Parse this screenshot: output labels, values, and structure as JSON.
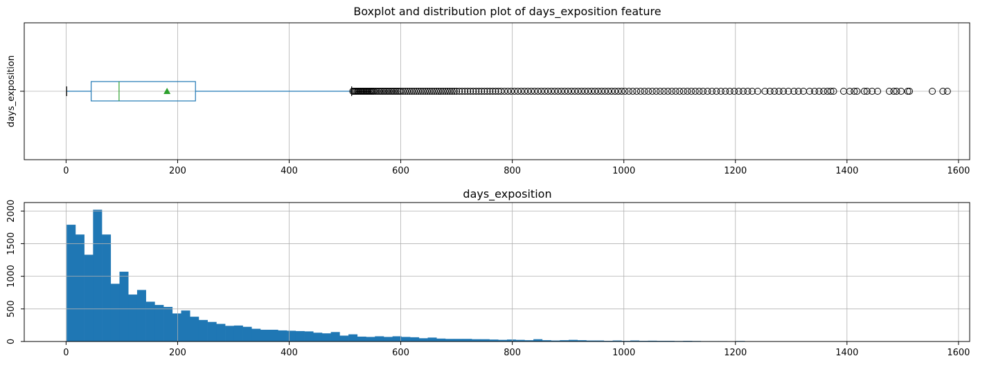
{
  "chart_data": [
    {
      "type": "box",
      "title": "Boxplot and distribution plot of days_exposition feature",
      "xlabel": "",
      "ylabel": "days_exposition",
      "category_label": "days_exposition",
      "xlim": [
        -75,
        1620
      ],
      "xticks": [
        0,
        200,
        400,
        600,
        800,
        1000,
        1200,
        1400,
        1600
      ],
      "grid": true,
      "orientation": "horizontal",
      "box": {
        "whisker_low": 1,
        "q1": 45,
        "median": 95,
        "mean": 181,
        "q3": 232,
        "whisker_high": 512
      },
      "outliers": [
        514,
        516,
        518,
        520,
        522,
        524,
        526,
        528,
        530,
        532,
        534,
        536,
        538,
        540,
        542,
        544,
        546,
        548,
        550,
        552,
        555,
        558,
        561,
        564,
        567,
        570,
        573,
        576,
        579,
        582,
        585,
        588,
        591,
        594,
        597,
        600,
        604,
        608,
        612,
        616,
        620,
        624,
        628,
        632,
        636,
        640,
        644,
        648,
        652,
        656,
        660,
        664,
        668,
        672,
        676,
        680,
        684,
        688,
        692,
        696,
        700,
        705,
        710,
        715,
        720,
        725,
        730,
        735,
        740,
        745,
        750,
        755,
        760,
        765,
        770,
        775,
        780,
        786,
        792,
        798,
        804,
        810,
        816,
        822,
        828,
        834,
        840,
        846,
        852,
        858,
        864,
        870,
        876,
        882,
        888,
        894,
        900,
        906,
        912,
        918,
        924,
        930,
        936,
        942,
        948,
        954,
        960,
        966,
        972,
        978,
        984,
        990,
        996,
        1002,
        1009,
        1016,
        1023,
        1030,
        1037,
        1044,
        1051,
        1058,
        1065,
        1072,
        1079,
        1086,
        1093,
        1100,
        1107,
        1114,
        1121,
        1128,
        1135,
        1142,
        1150,
        1158,
        1166,
        1174,
        1182,
        1190,
        1198,
        1206,
        1214,
        1222,
        1230,
        1240,
        1253,
        1262,
        1270,
        1278,
        1286,
        1295,
        1305,
        1313,
        1322,
        1333,
        1342,
        1350,
        1358,
        1365,
        1371,
        1376,
        1394,
        1405,
        1413,
        1418,
        1431,
        1436,
        1445,
        1455,
        1476,
        1484,
        1489,
        1497,
        1509,
        1512,
        1553,
        1572,
        1580
      ]
    },
    {
      "type": "histogram",
      "title": "days_exposition",
      "xlabel": "",
      "ylabel": "",
      "xlim": [
        -75,
        1620
      ],
      "ylim": [
        0,
        2130
      ],
      "xticks": [
        0,
        200,
        400,
        600,
        800,
        1000,
        1200,
        1400,
        1600
      ],
      "yticks": [
        0,
        500,
        1000,
        1500,
        2000
      ],
      "grid": true,
      "bins": 100,
      "bin_start": 1,
      "bin_width": 15.79,
      "color": "#1f77b4",
      "counts": [
        1790,
        1640,
        1330,
        2020,
        1640,
        885,
        1070,
        720,
        790,
        610,
        560,
        530,
        430,
        475,
        380,
        330,
        300,
        270,
        240,
        245,
        225,
        195,
        180,
        180,
        170,
        165,
        160,
        155,
        135,
        125,
        145,
        90,
        110,
        75,
        70,
        80,
        70,
        80,
        70,
        65,
        50,
        60,
        45,
        40,
        40,
        40,
        35,
        35,
        30,
        25,
        30,
        25,
        20,
        35,
        20,
        15,
        20,
        25,
        20,
        15,
        15,
        10,
        15,
        10,
        15,
        10,
        12,
        10,
        10,
        8,
        10,
        8,
        6,
        6,
        6,
        5,
        8,
        5,
        5,
        4,
        5,
        3,
        5,
        4,
        3,
        3,
        2,
        3,
        3,
        2,
        2,
        2,
        2,
        1,
        2,
        1,
        1,
        1,
        1,
        1
      ]
    }
  ]
}
